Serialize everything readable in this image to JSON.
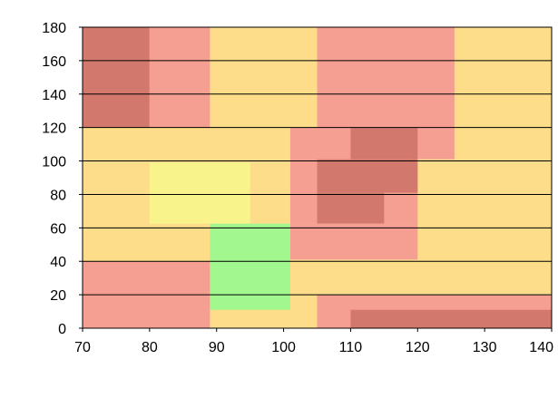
{
  "chart_data": {
    "type": "heatmap",
    "title": "",
    "xlabel": "",
    "ylabel": "",
    "xlim": [
      70,
      140
    ],
    "ylim": [
      0,
      180
    ],
    "x_ticks": [
      70,
      80,
      90,
      100,
      110,
      120,
      130,
      140
    ],
    "y_ticks": [
      0,
      20,
      40,
      60,
      80,
      100,
      120,
      140,
      160,
      180
    ],
    "grid": "horizontal",
    "colors": {
      "green": "#a3f78f",
      "yellow": "#f9f38c",
      "orange": "#fddd8a",
      "red": "#f59f92",
      "dark_red": "#d3786d"
    },
    "regions": [
      {
        "x0": 70,
        "x1": 140,
        "y0": 0,
        "y1": 180,
        "color": "orange"
      },
      {
        "x0": 70,
        "x1": 80,
        "y0": 120,
        "y1": 180,
        "color": "dark_red"
      },
      {
        "x0": 80,
        "x1": 89,
        "y0": 120,
        "y1": 180,
        "color": "red"
      },
      {
        "x0": 105,
        "x1": 125.5,
        "y0": 120,
        "y1": 180,
        "color": "red"
      },
      {
        "x0": 101,
        "x1": 120,
        "y0": 62.5,
        "y1": 120,
        "color": "red"
      },
      {
        "x0": 101,
        "x1": 125.5,
        "y0": 101,
        "y1": 120,
        "color": "red"
      },
      {
        "x0": 110,
        "x1": 120,
        "y0": 101,
        "y1": 120,
        "color": "dark_red"
      },
      {
        "x0": 105,
        "x1": 120,
        "y0": 81,
        "y1": 101,
        "color": "dark_red"
      },
      {
        "x0": 105,
        "x1": 115,
        "y0": 62.5,
        "y1": 81,
        "color": "dark_red"
      },
      {
        "x0": 80,
        "x1": 95,
        "y0": 62.5,
        "y1": 99,
        "color": "yellow"
      },
      {
        "x0": 101,
        "x1": 120,
        "y0": 41,
        "y1": 62.5,
        "color": "red"
      },
      {
        "x0": 89,
        "x1": 101,
        "y0": 11,
        "y1": 62.5,
        "color": "green"
      },
      {
        "x0": 70,
        "x1": 89,
        "y0": 0,
        "y1": 40,
        "color": "red"
      },
      {
        "x0": 105,
        "x1": 140,
        "y0": 0,
        "y1": 20,
        "color": "red"
      },
      {
        "x0": 110,
        "x1": 140,
        "y0": 0,
        "y1": 11,
        "color": "dark_red"
      }
    ]
  }
}
